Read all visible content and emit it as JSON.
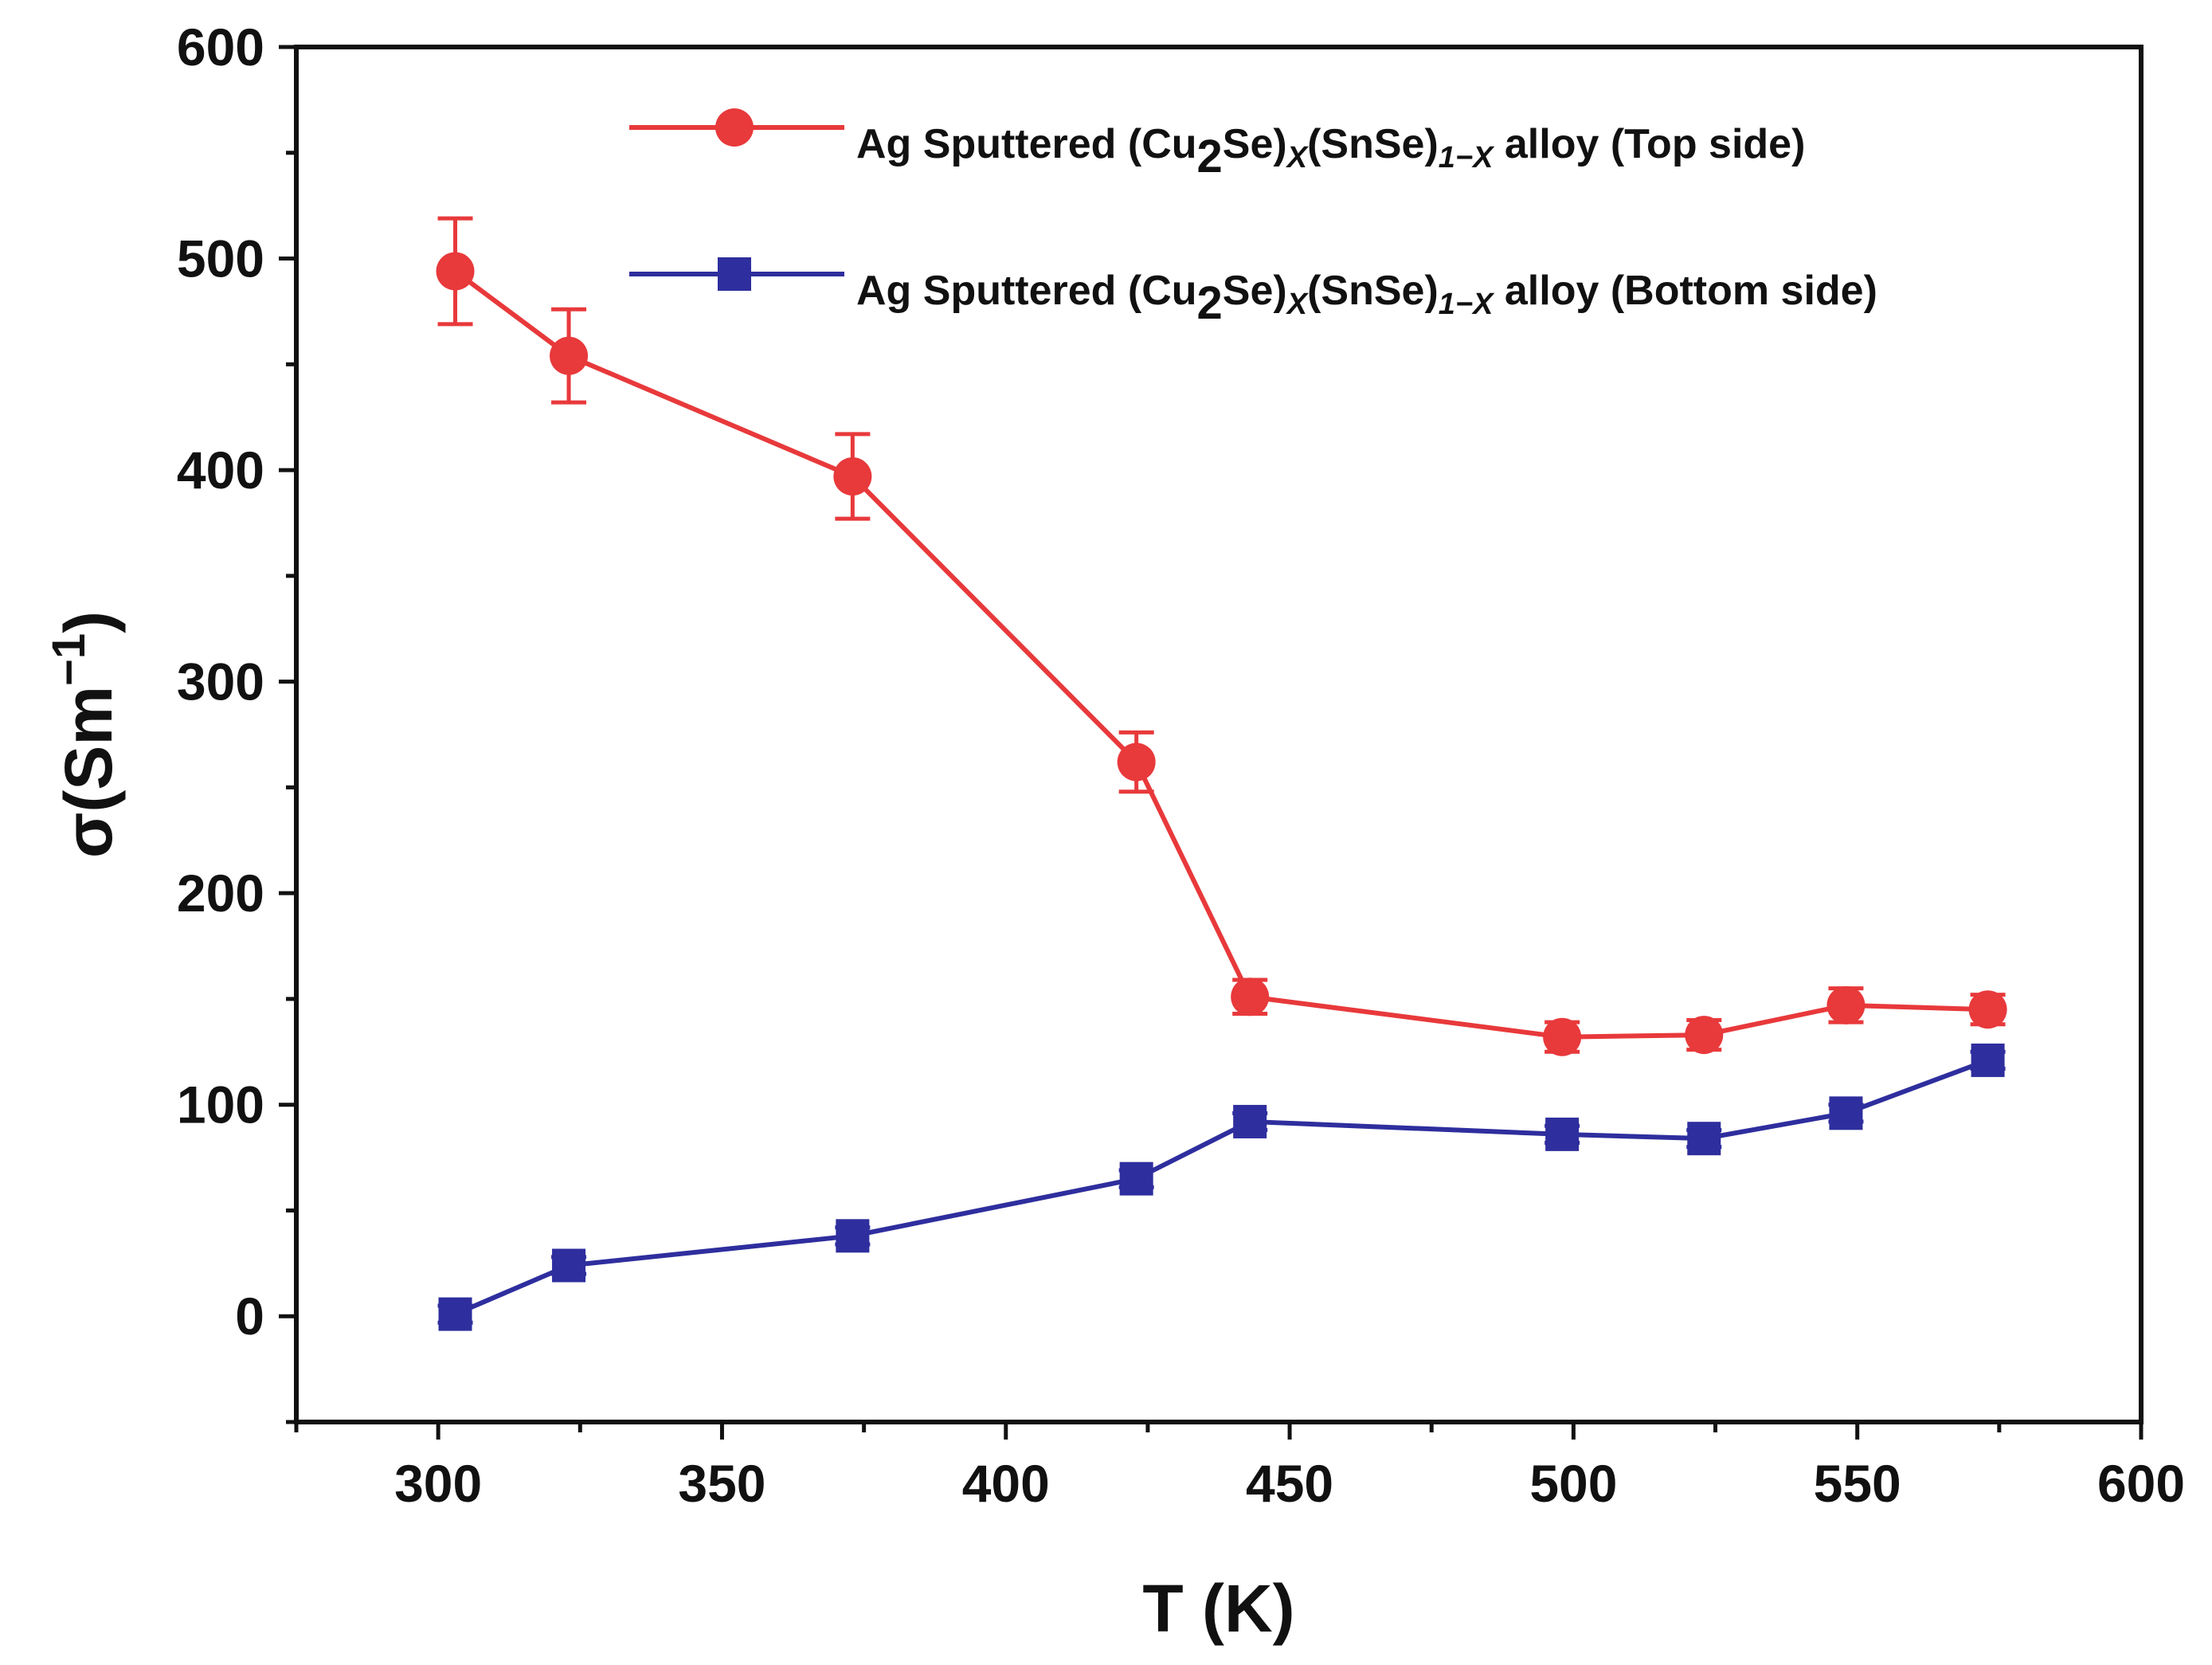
{
  "chart_data": {
    "type": "line",
    "title": "",
    "xlabel": "T (K)",
    "ylabel": "σ(Sm",
    "ylabel_superscript": "−1",
    "ylabel_close": ")",
    "xlim": [
      275,
      600
    ],
    "ylim": [
      -50,
      600
    ],
    "x_major_ticks": [
      300,
      350,
      400,
      450,
      500,
      550,
      600
    ],
    "x_minor_ticks": [
      275,
      325,
      375,
      425,
      475,
      525,
      575
    ],
    "y_major_ticks": [
      0,
      100,
      200,
      300,
      400,
      500,
      600
    ],
    "y_minor_ticks": [
      -50,
      50,
      150,
      250,
      350,
      450,
      550
    ],
    "x_tick_labels": [
      "300",
      "350",
      "400",
      "450",
      "500",
      "550",
      "600"
    ],
    "y_tick_labels": [
      "0",
      "100",
      "200",
      "300",
      "400",
      "500",
      "600"
    ],
    "grid": false,
    "legend_position": "top-right",
    "series": [
      {
        "name": "Ag Sputtered (Cu2Se)x(SnSe)1−x alloy (Top side)",
        "legend": {
          "pre": "Ag Sputtered (Cu",
          "sub1": "2",
          "mid": "Se)",
          "sub2": "X",
          "mid2": "(SnSe)",
          "sub3": "1−X",
          "post": " alloy (Top side)"
        },
        "color": "#e8393b",
        "marker": "circle",
        "x": [
          303,
          323,
          373,
          423,
          443,
          498,
          523,
          548,
          573
        ],
        "y": [
          494,
          454,
          397,
          262,
          151,
          132,
          133,
          147,
          145
        ],
        "err": [
          25,
          22,
          20,
          14,
          8,
          7,
          7,
          8,
          7
        ]
      },
      {
        "name": "Ag Sputtered (Cu2Se)x(SnSe)1−x alloy (Bottom side)",
        "legend": {
          "pre": "Ag Sputtered (Cu",
          "sub1": "2",
          "mid": "Se)",
          "sub2": "X",
          "mid2": "(SnSe)",
          "sub3": "1−X",
          "post": " alloy (Bottom side)"
        },
        "color": "#2e2e9e",
        "marker": "square",
        "x": [
          303,
          323,
          373,
          423,
          443,
          498,
          523,
          548,
          573
        ],
        "y": [
          1,
          24,
          38,
          65,
          92,
          86,
          84,
          96,
          121
        ],
        "err": [
          4,
          4,
          4,
          4,
          4,
          4,
          4,
          4,
          4
        ]
      }
    ]
  }
}
